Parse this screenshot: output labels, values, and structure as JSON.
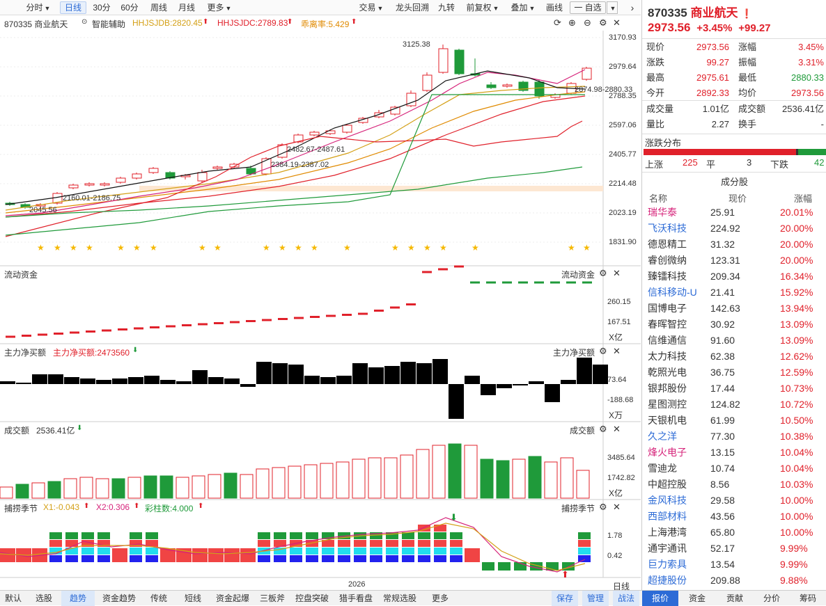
{
  "toolbar": {
    "left": [
      "分时",
      "日线",
      "30分",
      "60分",
      "周线",
      "月线",
      "更多"
    ],
    "right": [
      "交易",
      "龙头回溯",
      "九转",
      "前复权",
      "叠加",
      "画线",
      "一 自选"
    ]
  },
  "info": {
    "code_name": "870335 商业航天",
    "assist": "智能辅助",
    "ma1": "HHJSJDB:2820.45",
    "ma2": "HHJSJDC:2789.83",
    "ma3": "乖离率:5.429"
  },
  "main_axis": [
    "3170.93",
    "2979.64",
    "2788.35",
    "2597.06",
    "2405.77",
    "2214.48",
    "2023.19",
    "1831.90"
  ],
  "annot": {
    "high": "3125.38",
    "a1": "2874.98-2880.33",
    "a2": "2482.67-2487.61",
    "a3": "2384.19-2387.02",
    "a4": "2160.01-2186.75",
    "a5": "2045.56"
  },
  "flow": {
    "title": "流动资金",
    "title_r": "流动资金",
    "ticks": [
      "260.15",
      "167.51"
    ],
    "unit": "X亿"
  },
  "net": {
    "title": "主力净买额",
    "value": "主力净买额:2473560",
    "title_r": "主力净买额",
    "ticks": [
      "73.64",
      "-188.68"
    ],
    "unit": "X万"
  },
  "vol": {
    "title": "成交额",
    "value": "2536.41亿",
    "title_r": "成交额",
    "ticks": [
      "3485.64",
      "1742.82"
    ],
    "unit": "X亿"
  },
  "season": {
    "title": "捕捞季节",
    "x1": "X1:-0.043",
    "x2": "X2:0.306",
    "cz": "彩柱数:4.000",
    "title_r": "捕捞季节",
    "ticks": [
      "1.78",
      "0.42"
    ],
    "year": "2026",
    "period": "日线"
  },
  "quote": {
    "code": "870335",
    "name": "商业航天",
    "price": "2973.56",
    "pct": "+3.45%",
    "chg": "+99.27",
    "rows": [
      [
        "现价",
        "2973.56",
        "涨幅",
        "3.45%"
      ],
      [
        "涨跌",
        "99.27",
        "振幅",
        "3.31%"
      ],
      [
        "最高",
        "2975.61",
        "最低",
        "2880.33"
      ],
      [
        "今开",
        "2892.33",
        "均价",
        "2973.56"
      ]
    ],
    "rows2": [
      [
        "成交量",
        "1.01亿",
        "成交额",
        "2536.41亿"
      ],
      [
        "量比",
        "2.27",
        "换手",
        "-"
      ]
    ],
    "dist_title": "涨跌分布",
    "up_l": "上涨",
    "up": "225",
    "flat_l": "平",
    "flat": "3",
    "down_l": "下跌",
    "down": "42",
    "comp_title": "成分股",
    "hdr": [
      "名称",
      "现价",
      "涨幅"
    ]
  },
  "stocks": [
    [
      "瑞华泰",
      "25.91",
      "20.01%",
      "#d6237a"
    ],
    [
      "飞沃科技",
      "224.92",
      "20.00%",
      "#2d6bd6"
    ],
    [
      "德恩精工",
      "31.32",
      "20.00%",
      "#333"
    ],
    [
      "睿创微纳",
      "123.31",
      "20.00%",
      "#333"
    ],
    [
      "臻镭科技",
      "209.34",
      "16.34%",
      "#333"
    ],
    [
      "信科移动-U",
      "21.41",
      "15.92%",
      "#2d6bd6"
    ],
    [
      "国博电子",
      "142.63",
      "13.94%",
      "#333"
    ],
    [
      "春晖智控",
      "30.92",
      "13.09%",
      "#333"
    ],
    [
      "信维通信",
      "91.60",
      "13.09%",
      "#333"
    ],
    [
      "太力科技",
      "62.38",
      "12.62%",
      "#333"
    ],
    [
      "乾照光电",
      "36.75",
      "12.59%",
      "#333"
    ],
    [
      "银邦股份",
      "17.44",
      "10.73%",
      "#333"
    ],
    [
      "星图测控",
      "124.82",
      "10.72%",
      "#333"
    ],
    [
      "天银机电",
      "61.99",
      "10.50%",
      "#333"
    ],
    [
      "久之洋",
      "77.30",
      "10.38%",
      "#2d6bd6"
    ],
    [
      "烽火电子",
      "13.15",
      "10.04%",
      "#d6237a"
    ],
    [
      "雪迪龙",
      "10.74",
      "10.04%",
      "#333"
    ],
    [
      "中超控股",
      "8.56",
      "10.03%",
      "#333"
    ],
    [
      "金风科技",
      "29.58",
      "10.00%",
      "#2d6bd6"
    ],
    [
      "西部材料",
      "43.56",
      "10.00%",
      "#2d6bd6"
    ],
    [
      "上海港湾",
      "65.80",
      "10.00%",
      "#333"
    ],
    [
      "通宇通讯",
      "52.17",
      "9.99%",
      "#333"
    ],
    [
      "巨力索具",
      "13.54",
      "9.99%",
      "#2d6bd6"
    ],
    [
      "超捷股份",
      "209.88",
      "9.88%",
      "#2d6bd6"
    ]
  ],
  "bottom_left": [
    "默认",
    "选股",
    "趋势",
    "资金趋势",
    "传统",
    "短线",
    "资金起爆",
    "三板斧",
    "控盘突破",
    "猎手看盘",
    "常规选股",
    "更多"
  ],
  "bottom_mid": [
    "保存",
    "管理",
    "战法"
  ],
  "bottom_right": [
    "报价",
    "资金",
    "贡献",
    "分价",
    "筹码"
  ]
}
